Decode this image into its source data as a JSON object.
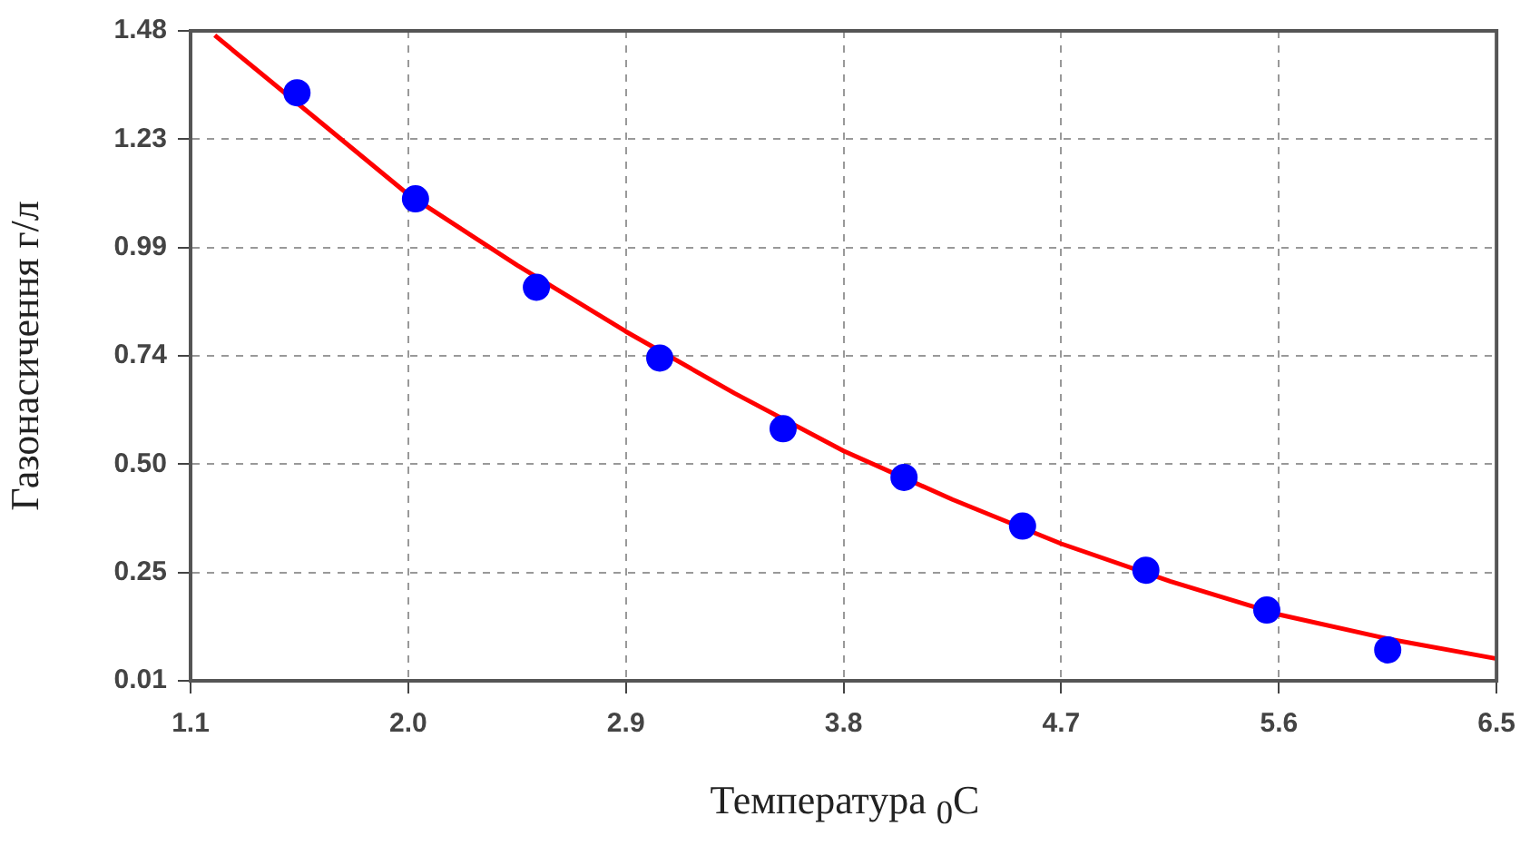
{
  "chart_data": {
    "type": "scatter",
    "xlabel": "Температура $_{0}$C",
    "ylabel": "Газонасичення г/л",
    "xlim": [
      1.1,
      6.5
    ],
    "xticks": [
      1.1,
      {
        "value": 2.0,
        "label": "2.0"
      },
      2.9,
      3.8,
      4.7,
      5.6,
      6.5
    ],
    "ylim": [
      0.01,
      1.48
    ],
    "yticks": [
      0.01,
      {
        "value": 0.255,
        "label": "0.25"
      },
      {
        "value": 0.5,
        "label": "0.50"
      },
      {
        "value": 0.745,
        "label": "0.74"
      },
      0.99,
      {
        "value": 1.235,
        "label": "1.23"
      },
      1.48
    ],
    "grid": true,
    "legend": false,
    "series": [
      {
        "color": "#0000ff",
        "marker": "circle",
        "x": [
          1.54,
          2.03,
          2.53,
          3.04,
          3.55,
          4.05,
          4.54,
          5.05,
          5.55,
          6.05
        ],
        "values": [
          1.34,
          1.1,
          0.9,
          0.74,
          0.58,
          0.47,
          0.36,
          0.26,
          0.17,
          0.08
        ]
      },
      {
        "type": "line",
        "color": "#ff0000",
        "marker": "none",
        "line_style": "solid",
        "x": [
          1.2,
          1.6,
          2.0,
          2.45,
          2.9,
          3.35,
          3.8,
          4.25,
          4.7,
          5.15,
          5.6,
          6.05,
          6.5
        ],
        "values": [
          1.47,
          1.29,
          1.11,
          0.95,
          0.8,
          0.66,
          0.53,
          0.42,
          0.32,
          0.235,
          0.16,
          0.105,
          0.06
        ]
      }
    ]
  }
}
